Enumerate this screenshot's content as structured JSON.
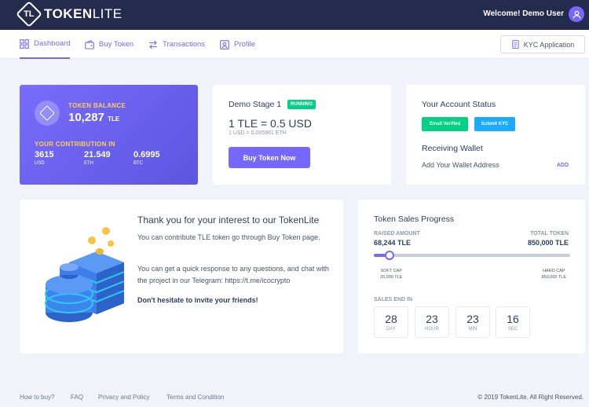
{
  "header": {
    "logo_text": "TOKEN",
    "logo_text_light": "LITE",
    "welcome": "Welcome! Demo User"
  },
  "nav": {
    "items": [
      {
        "label": "Dashboard",
        "icon": "dashboard-icon",
        "active": true
      },
      {
        "label": "Buy Token",
        "icon": "wallet-icon"
      },
      {
        "label": "Transactions",
        "icon": "transfer-icon"
      },
      {
        "label": "Profile",
        "icon": "user-icon"
      }
    ],
    "kyc_button": "KYC Application"
  },
  "token_balance": {
    "label": "TOKEN BALANCE",
    "amount": "10,287",
    "unit": "TLE",
    "contribution_label": "YOUR CONTRIBUTION IN",
    "contributions": [
      {
        "value": "3615",
        "unit": "USD"
      },
      {
        "value": "21.549",
        "unit": "ETH"
      },
      {
        "value": "0.6995",
        "unit": "BTC"
      }
    ]
  },
  "stage": {
    "title": "Demo Stage 1",
    "status": "RUNNING",
    "rate": "1 TLE = 0.5 USD",
    "rate_sub": "1 USD = 0.005961 ETH",
    "buy_button": "Buy Token Now"
  },
  "account": {
    "title": "Your Account Status",
    "email_badge": "Email Verified",
    "kyc_badge": "Submit KYC",
    "wallet_title": "Receiving Wallet",
    "wallet_placeholder": "Add Your Wallet Address",
    "wallet_action": "ADD"
  },
  "info": {
    "title": "Thank you for your interest to our TokenLite",
    "p1": "You can contribute TLE token go through Buy Token page.",
    "p2": "You can get a quick response to any questions, and chat with the project in our Telegram: https://t.me/icocrypto",
    "p3": "Don't hesitate to invite your friends!"
  },
  "sales": {
    "title": "Token Sales Progress",
    "raised_label": "RAISED AMOUNT",
    "raised_value": "68,244 TLE",
    "total_label": "TOTAL TOKEN",
    "total_value": "850,000 TLE",
    "progress_fraction": 0.08,
    "soft_cap_label": "SOFT CAP",
    "soft_cap_value": "20,000 TLE",
    "hard_cap_label": "HARD CAP",
    "hard_cap_value": "850,000 TLE",
    "sales_end_label": "SALES END IN",
    "countdown": [
      {
        "value": "28",
        "unit": "DAY"
      },
      {
        "value": "23",
        "unit": "HOUR"
      },
      {
        "value": "23",
        "unit": "MIN"
      },
      {
        "value": "16",
        "unit": "SEC"
      }
    ]
  },
  "footer": {
    "links": [
      "How to buy?",
      "FAQ",
      "Privacy and Policy",
      "Terms and Condition"
    ],
    "copyright": "© 2019 TokenLite. All Right Reserved."
  },
  "colors": {
    "accent": "#7668fe",
    "header_bg": "#252b4d",
    "success": "#00d285",
    "info": "#1babfe",
    "highlight": "#fdd24b"
  }
}
